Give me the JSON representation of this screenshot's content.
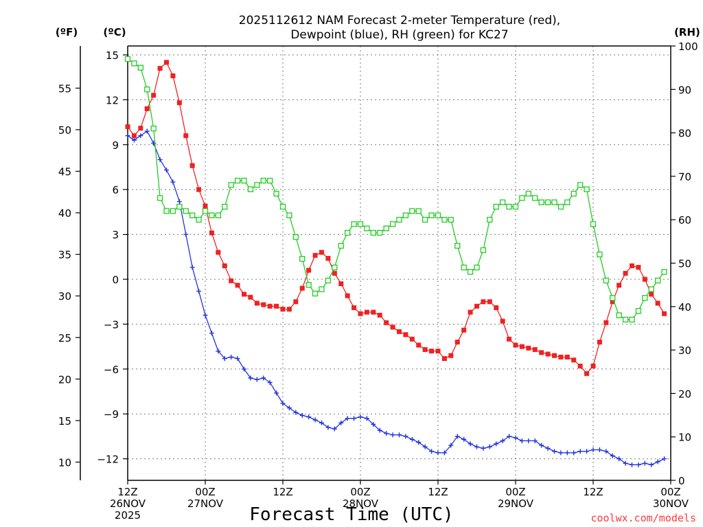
{
  "chart_data": {
    "type": "line",
    "title_line1": "2025112612 NAM Forecast 2-meter Temperature (red),",
    "title_line2": "Dewpoint (blue), RH (green) for KC27",
    "xlabel": "Forecast Time (UTC)",
    "left_unit_f": "(ºF)",
    "left_unit_c": "(ºC)",
    "right_unit": "(RH)",
    "credit": "coolwx.com/models",
    "x_range_hours": [
      0,
      84
    ],
    "y_c_range": [
      -13.5,
      15.5
    ],
    "y_c_ticks": [
      15,
      12,
      9,
      6,
      3,
      0,
      -3,
      -6,
      -9,
      -12
    ],
    "y_c_tick_labels": [
      "15",
      "12",
      "9",
      "6",
      "3",
      "0",
      "−3",
      "−6",
      "−9",
      "−12"
    ],
    "y_f_ticks": [
      55,
      50,
      45,
      40,
      35,
      30,
      25,
      20,
      15,
      10
    ],
    "y_f_tick_labels": [
      "55",
      "50",
      "45",
      "40",
      "35",
      "30",
      "25",
      "20",
      "15",
      "10"
    ],
    "y_rh_range": [
      0,
      100
    ],
    "y_rh_ticks": [
      0,
      10,
      20,
      30,
      40,
      50,
      60,
      70,
      80,
      90,
      100
    ],
    "y_rh_tick_labels": [
      "0",
      "10",
      "20",
      "30",
      "40",
      "50",
      "60",
      "70",
      "80",
      "90",
      "100"
    ],
    "x_ticks": [
      {
        "hour": 0,
        "lines": [
          "12Z",
          "26NOV",
          "2025"
        ]
      },
      {
        "hour": 12,
        "lines": [
          "00Z",
          "27NOV"
        ]
      },
      {
        "hour": 24,
        "lines": [
          "12Z"
        ]
      },
      {
        "hour": 36,
        "lines": [
          "00Z",
          "28NOV"
        ]
      },
      {
        "hour": 48,
        "lines": [
          "12Z"
        ]
      },
      {
        "hour": 60,
        "lines": [
          "00Z",
          "29NOV"
        ]
      },
      {
        "hour": 72,
        "lines": [
          "12Z"
        ]
      },
      {
        "hour": 84,
        "lines": [
          "00Z",
          "30NOV"
        ]
      }
    ],
    "series": [
      {
        "name": "2-meter Temperature",
        "unit": "C",
        "color": "#ee2222",
        "marker": "filled-square",
        "values": [
          10.2,
          9.6,
          10.1,
          11.4,
          12.3,
          14.1,
          14.5,
          13.6,
          11.8,
          9.6,
          7.6,
          6.0,
          4.9,
          3.1,
          1.8,
          0.9,
          -0.1,
          -0.4,
          -1.0,
          -1.2,
          -1.6,
          -1.7,
          -1.8,
          -1.8,
          -2.0,
          -2.0,
          -1.5,
          -0.6,
          0.6,
          1.6,
          1.8,
          1.4,
          0.4,
          -0.3,
          -1.1,
          -1.9,
          -2.3,
          -2.2,
          -2.2,
          -2.4,
          -2.9,
          -3.2,
          -3.5,
          -3.7,
          -4.0,
          -4.4,
          -4.7,
          -4.8,
          -4.8,
          -5.3,
          -5.1,
          -4.2,
          -3.4,
          -2.2,
          -1.8,
          -1.5,
          -1.5,
          -1.9,
          -2.8,
          -4.0,
          -4.4,
          -4.5,
          -4.6,
          -4.7,
          -4.9,
          -5.0,
          -5.1,
          -5.2,
          -5.2,
          -5.4,
          -5.8,
          -6.3,
          -5.8,
          -4.2,
          -2.9,
          -1.5,
          -0.4,
          0.4,
          0.9,
          0.8,
          0.0,
          -1.0,
          -1.6,
          -2.3
        ]
      },
      {
        "name": "Dewpoint",
        "unit": "C",
        "color": "#2233dd",
        "marker": "plus",
        "values": [
          9.6,
          9.3,
          9.6,
          9.9,
          9.1,
          8.0,
          7.3,
          6.5,
          5.2,
          3.0,
          0.8,
          -0.8,
          -2.4,
          -3.6,
          -4.8,
          -5.3,
          -5.2,
          -5.3,
          -6.0,
          -6.6,
          -6.7,
          -6.6,
          -6.9,
          -7.6,
          -8.3,
          -8.6,
          -8.9,
          -9.1,
          -9.2,
          -9.4,
          -9.6,
          -9.9,
          -10.0,
          -9.6,
          -9.3,
          -9.3,
          -9.2,
          -9.3,
          -9.7,
          -10.1,
          -10.3,
          -10.4,
          -10.4,
          -10.5,
          -10.7,
          -10.9,
          -11.2,
          -11.5,
          -11.6,
          -11.6,
          -11.1,
          -10.5,
          -10.7,
          -11.0,
          -11.2,
          -11.3,
          -11.2,
          -11.0,
          -10.8,
          -10.5,
          -10.6,
          -10.8,
          -10.8,
          -10.8,
          -11.1,
          -11.3,
          -11.5,
          -11.6,
          -11.6,
          -11.6,
          -11.5,
          -11.5,
          -11.4,
          -11.4,
          -11.5,
          -11.8,
          -12.0,
          -12.3,
          -12.4,
          -12.4,
          -12.3,
          -12.4,
          -12.2,
          -12.0
        ]
      },
      {
        "name": "Relative Humidity",
        "unit": "%",
        "color": "#22cc22",
        "marker": "open-square",
        "values": [
          97,
          96,
          95,
          90,
          81,
          65,
          62,
          62,
          63,
          62,
          61,
          60,
          62,
          61,
          61,
          63,
          68,
          69,
          69,
          67,
          68,
          69,
          69,
          66,
          63,
          61,
          56,
          51,
          45,
          43,
          44,
          46,
          49,
          54,
          57,
          59,
          59,
          58,
          57,
          57,
          58,
          59,
          60,
          61,
          62,
          62,
          60,
          61,
          61,
          60,
          60,
          54,
          49,
          48,
          49,
          53,
          60,
          63,
          64,
          63,
          63,
          65,
          66,
          65,
          64,
          64,
          64,
          63,
          64,
          66,
          68,
          67,
          59,
          52,
          46,
          42,
          38,
          37,
          37,
          39,
          42,
          44,
          46,
          48
        ]
      }
    ]
  }
}
